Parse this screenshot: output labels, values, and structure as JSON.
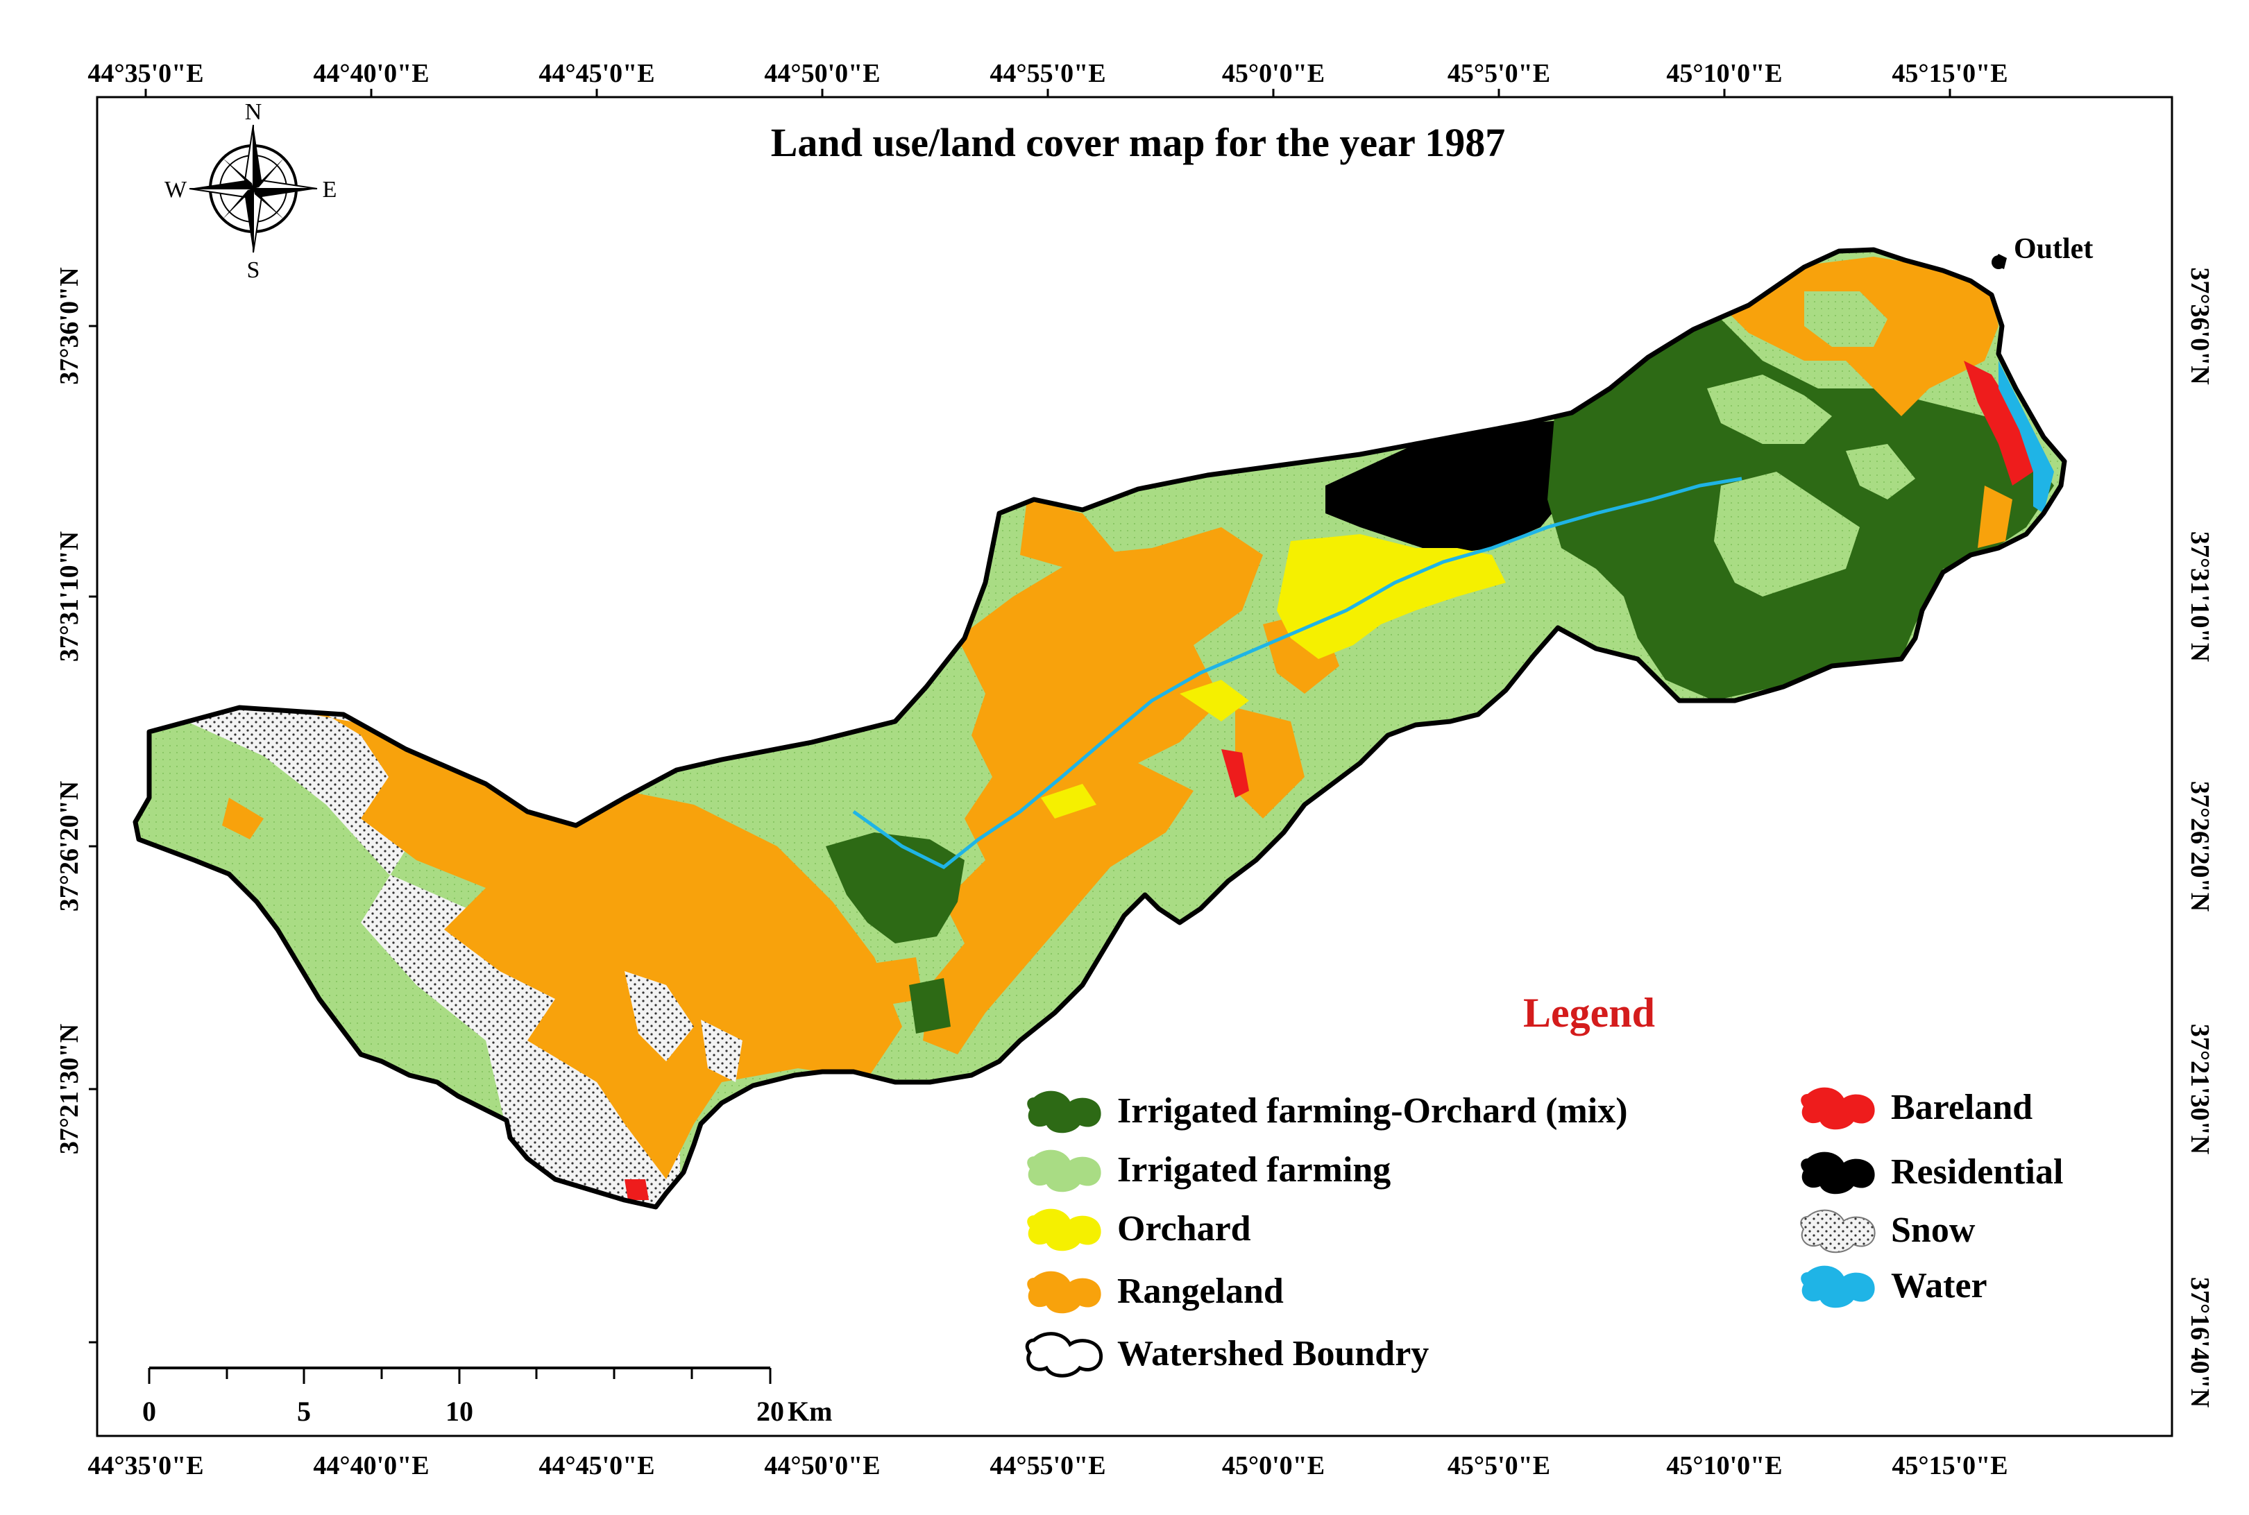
{
  "title": "Land use/land cover map for the year 1987",
  "longitude_labels": [
    "44°35'0\"E",
    "44°40'0\"E",
    "44°45'0\"E",
    "44°50'0\"E",
    "44°55'0\"E",
    "45°0'0\"E",
    "45°5'0\"E",
    "45°10'0\"E",
    "45°15'0\"E"
  ],
  "latitude_labels": [
    "37°36'0\"N",
    "37°31'10\"N",
    "37°26'20\"N",
    "37°21'30\"N",
    "37°16'40\"N"
  ],
  "compass": {
    "icon": "north-arrow-compass-rose-icon",
    "n": "N",
    "s": "S",
    "e": "E",
    "w": "W"
  },
  "outlet_label": "Outlet",
  "legend": {
    "title": "Legend",
    "items": [
      {
        "label": "Irrigated farming-Orchard (mix)",
        "color": "#2d6a15",
        "icon": "blob-swatch-icon"
      },
      {
        "label": "Irrigated farming",
        "color": "#a9dc84",
        "icon": "blob-swatch-icon"
      },
      {
        "label": "Orchard",
        "color": "#f5f000",
        "icon": "blob-swatch-icon"
      },
      {
        "label": "Rangeland",
        "color": "#f8a20c",
        "icon": "blob-swatch-icon"
      },
      {
        "label": "Watershed Boundry",
        "color": "#ffffff",
        "icon": "outline-swatch-icon"
      },
      {
        "label": "Bareland",
        "color": "#ee1c1c",
        "icon": "blob-swatch-icon"
      },
      {
        "label": "Residential",
        "color": "#000000",
        "icon": "blob-swatch-icon"
      },
      {
        "label": "Snow",
        "color": "#f2f2f2",
        "icon": "dotted-swatch-icon"
      },
      {
        "label": "Water",
        "color": "#1fb4e6",
        "icon": "blob-swatch-icon"
      }
    ]
  },
  "scale_bar": {
    "labels": [
      "0",
      "5",
      "10",
      "20"
    ],
    "unit": "Km"
  }
}
